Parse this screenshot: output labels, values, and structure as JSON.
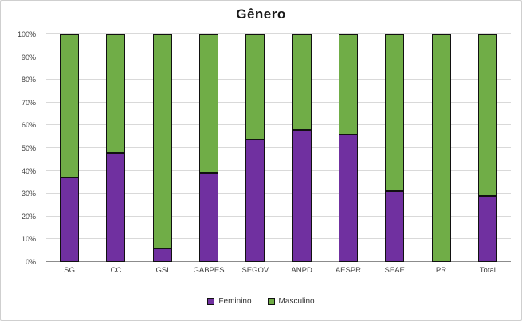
{
  "chart_data": {
    "type": "bar",
    "subtype": "stacked-percent",
    "title": "Gênero",
    "categories": [
      "SG",
      "CC",
      "GSI",
      "GABPES",
      "SEGOV",
      "ANPD",
      "AESPR",
      "SEAE",
      "PR",
      "Total"
    ],
    "series": [
      {
        "name": "Feminino",
        "color": "#7030A0",
        "values": [
          37,
          48,
          6,
          39,
          54,
          58,
          56,
          31,
          0,
          29
        ]
      },
      {
        "name": "Masculino",
        "color": "#70AD47",
        "values": [
          63,
          52,
          94,
          61,
          46,
          42,
          44,
          69,
          100,
          71
        ]
      }
    ],
    "ylabel": "",
    "xlabel": "",
    "ylim": [
      0,
      100
    ],
    "ytick_step": 10,
    "ytick_labels": [
      "0%",
      "10%",
      "20%",
      "30%",
      "40%",
      "50%",
      "60%",
      "70%",
      "80%",
      "90%",
      "100%"
    ],
    "grid": true,
    "gridline_color": "#d9d9d9",
    "legend_position": "bottom"
  }
}
